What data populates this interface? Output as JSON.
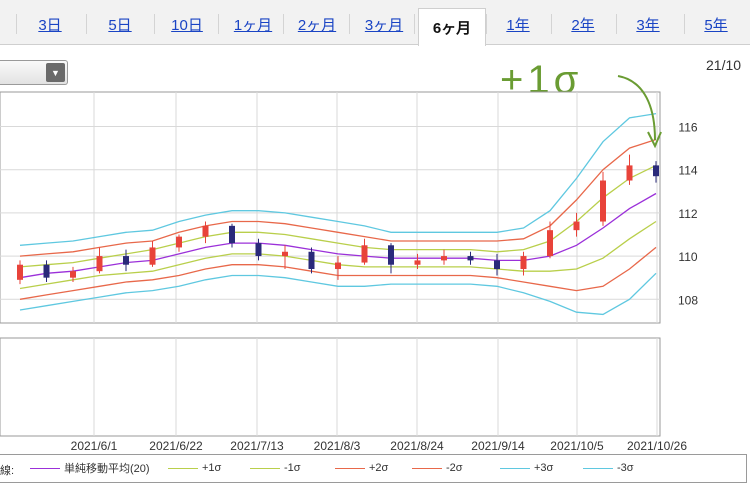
{
  "tabs": [
    {
      "label": "3日",
      "active": false
    },
    {
      "label": "5日",
      "active": false
    },
    {
      "label": "10日",
      "active": false
    },
    {
      "label": "1ヶ月",
      "active": false
    },
    {
      "label": "2ヶ月",
      "active": false
    },
    {
      "label": "3ヶ月",
      "active": false
    },
    {
      "label": "6ヶ月",
      "active": true
    },
    {
      "label": "1年",
      "active": false
    },
    {
      "label": "2年",
      "active": false
    },
    {
      "label": "3年",
      "active": false
    },
    {
      "label": "5年",
      "active": false
    }
  ],
  "header": {
    "date_label": "21/10",
    "select_icon": "triangle-down-icon"
  },
  "annotation": {
    "text": "+1σ",
    "color": "#6a9c33"
  },
  "legend": {
    "prefix": "線:",
    "items": [
      {
        "label": "単純移動平均(20)",
        "color": "#9b30d9"
      },
      {
        "label": "+1σ",
        "color": "#b9cf4b"
      },
      {
        "label": "-1σ",
        "color": "#b9cf4b"
      },
      {
        "label": "+2σ",
        "color": "#e8684a"
      },
      {
        "label": "-2σ",
        "color": "#e8684a"
      },
      {
        "label": "+3σ",
        "color": "#5fc8e0"
      },
      {
        "label": "-3σ",
        "color": "#5fc8e0"
      }
    ]
  },
  "chart_data": {
    "type": "line",
    "subtype": "candlestick-with-bollinger-bands",
    "x_tick_labels": [
      "2021/6/1",
      "2021/6/22",
      "2021/7/13",
      "2021/8/3",
      "2021/8/24",
      "2021/9/14",
      "2021/10/5",
      "2021/10/26"
    ],
    "y_tick_labels": [
      "108",
      "110",
      "112",
      "114",
      "116"
    ],
    "ylim": [
      106.9,
      117.6
    ],
    "grid": true,
    "colors": {
      "up": "#e8433a",
      "down": "#2a2a7a"
    },
    "x": [
      "2021/5/10",
      "2021/5/17",
      "2021/5/24",
      "2021/6/1",
      "2021/6/8",
      "2021/6/15",
      "2021/6/22",
      "2021/6/29",
      "2021/7/6",
      "2021/7/13",
      "2021/7/20",
      "2021/7/27",
      "2021/8/3",
      "2021/8/10",
      "2021/8/17",
      "2021/8/24",
      "2021/8/31",
      "2021/9/7",
      "2021/9/14",
      "2021/9/21",
      "2021/9/28",
      "2021/10/5",
      "2021/10/12",
      "2021/10/19",
      "2021/10/26"
    ],
    "candles": [
      {
        "o": 108.9,
        "c": 109.6,
        "h": 109.8,
        "l": 108.7
      },
      {
        "o": 109.6,
        "c": 109.0,
        "h": 109.8,
        "l": 108.8
      },
      {
        "o": 109.0,
        "c": 109.3,
        "h": 109.5,
        "l": 108.8
      },
      {
        "o": 109.3,
        "c": 110.0,
        "h": 110.4,
        "l": 109.2
      },
      {
        "o": 110.0,
        "c": 109.6,
        "h": 110.3,
        "l": 109.3
      },
      {
        "o": 109.6,
        "c": 110.4,
        "h": 110.7,
        "l": 109.5
      },
      {
        "o": 110.4,
        "c": 110.9,
        "h": 111.0,
        "l": 110.2
      },
      {
        "o": 110.9,
        "c": 111.4,
        "h": 111.6,
        "l": 110.6
      },
      {
        "o": 111.4,
        "c": 110.6,
        "h": 111.5,
        "l": 110.4
      },
      {
        "o": 110.6,
        "c": 110.0,
        "h": 110.8,
        "l": 109.8
      },
      {
        "o": 110.0,
        "c": 110.2,
        "h": 110.5,
        "l": 109.4
      },
      {
        "o": 110.2,
        "c": 109.4,
        "h": 110.4,
        "l": 109.2
      },
      {
        "o": 109.4,
        "c": 109.7,
        "h": 110.0,
        "l": 108.9
      },
      {
        "o": 109.7,
        "c": 110.5,
        "h": 110.8,
        "l": 109.6
      },
      {
        "o": 110.5,
        "c": 109.6,
        "h": 110.6,
        "l": 109.2
      },
      {
        "o": 109.6,
        "c": 109.8,
        "h": 110.1,
        "l": 109.4
      },
      {
        "o": 109.8,
        "c": 110.0,
        "h": 110.3,
        "l": 109.6
      },
      {
        "o": 110.0,
        "c": 109.8,
        "h": 110.2,
        "l": 109.6
      },
      {
        "o": 109.8,
        "c": 109.4,
        "h": 110.1,
        "l": 109.1
      },
      {
        "o": 109.4,
        "c": 110.0,
        "h": 110.2,
        "l": 109.1
      },
      {
        "o": 110.0,
        "c": 111.2,
        "h": 111.6,
        "l": 109.9
      },
      {
        "o": 111.2,
        "c": 111.6,
        "h": 112.0,
        "l": 110.9
      },
      {
        "o": 111.6,
        "c": 113.5,
        "h": 113.9,
        "l": 111.4
      },
      {
        "o": 113.5,
        "c": 114.2,
        "h": 114.7,
        "l": 113.3
      },
      {
        "o": 114.2,
        "c": 113.7,
        "h": 114.4,
        "l": 113.4
      }
    ],
    "series": [
      {
        "name": "単純移動平均(20)",
        "color": "#9b30d9",
        "values": [
          109.0,
          109.2,
          109.3,
          109.5,
          109.7,
          109.8,
          110.1,
          110.4,
          110.6,
          110.6,
          110.5,
          110.3,
          110.1,
          110.0,
          109.9,
          109.9,
          109.9,
          109.9,
          109.8,
          109.8,
          110.0,
          110.5,
          111.3,
          112.2,
          112.9
        ]
      },
      {
        "name": "+1σ",
        "color": "#b9cf4b",
        "values": [
          109.5,
          109.6,
          109.7,
          109.9,
          110.1,
          110.3,
          110.6,
          110.9,
          111.1,
          111.1,
          111.0,
          110.8,
          110.6,
          110.4,
          110.3,
          110.3,
          110.3,
          110.3,
          110.2,
          110.3,
          110.7,
          111.6,
          112.7,
          113.6,
          114.2
        ]
      },
      {
        "name": "-1σ",
        "color": "#b9cf4b",
        "values": [
          108.5,
          108.7,
          108.9,
          109.1,
          109.2,
          109.3,
          109.6,
          109.9,
          110.1,
          110.1,
          110.0,
          109.8,
          109.6,
          109.5,
          109.5,
          109.5,
          109.5,
          109.5,
          109.4,
          109.3,
          109.3,
          109.4,
          109.9,
          110.8,
          111.6
        ]
      },
      {
        "name": "+2σ",
        "color": "#e8684a",
        "values": [
          110.0,
          110.1,
          110.2,
          110.4,
          110.6,
          110.7,
          111.1,
          111.4,
          111.6,
          111.6,
          111.5,
          111.3,
          111.1,
          110.9,
          110.7,
          110.7,
          110.7,
          110.7,
          110.7,
          110.8,
          111.4,
          112.6,
          114.0,
          115.0,
          115.4
        ]
      },
      {
        "name": "-2σ",
        "color": "#e8684a",
        "values": [
          108.0,
          108.2,
          108.4,
          108.6,
          108.8,
          108.9,
          109.1,
          109.4,
          109.6,
          109.6,
          109.5,
          109.3,
          109.1,
          109.1,
          109.1,
          109.1,
          109.1,
          109.1,
          109.0,
          108.8,
          108.6,
          108.4,
          108.6,
          109.4,
          110.4
        ]
      },
      {
        "name": "+3σ",
        "color": "#5fc8e0",
        "values": [
          110.5,
          110.6,
          110.7,
          110.9,
          111.1,
          111.2,
          111.6,
          111.9,
          112.1,
          112.1,
          112.0,
          111.8,
          111.6,
          111.4,
          111.1,
          111.1,
          111.1,
          111.1,
          111.1,
          111.3,
          112.1,
          113.6,
          115.3,
          116.4,
          116.6
        ]
      },
      {
        "name": "-3σ",
        "color": "#5fc8e0",
        "values": [
          107.5,
          107.7,
          107.9,
          108.1,
          108.3,
          108.4,
          108.6,
          108.9,
          109.1,
          109.1,
          109.0,
          108.8,
          108.6,
          108.6,
          108.7,
          108.7,
          108.7,
          108.7,
          108.6,
          108.3,
          107.9,
          107.4,
          107.3,
          108.0,
          109.2
        ]
      }
    ]
  }
}
